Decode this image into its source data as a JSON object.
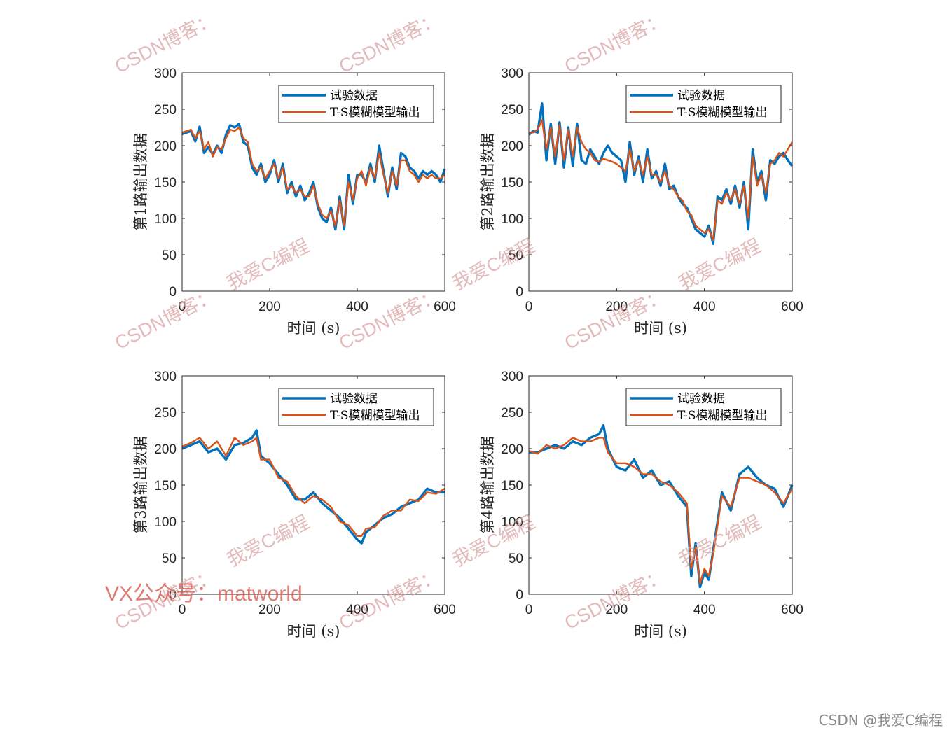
{
  "chart_data": [
    {
      "type": "line",
      "xlabel": "时间 (s)",
      "ylabel": "第1路输出数据",
      "xlim": [
        0,
        600
      ],
      "ylim": [
        0,
        300
      ],
      "xticks": [
        0,
        200,
        400,
        600
      ],
      "yticks": [
        0,
        50,
        100,
        150,
        200,
        250,
        300
      ],
      "grid": false,
      "legend_position": "top-right",
      "series": [
        {
          "name": "试验数据",
          "color": "#0072BD",
          "x": [
            0,
            20,
            30,
            40,
            50,
            60,
            70,
            80,
            90,
            100,
            110,
            120,
            130,
            140,
            150,
            160,
            170,
            180,
            190,
            200,
            210,
            220,
            230,
            240,
            250,
            260,
            270,
            280,
            290,
            300,
            310,
            320,
            330,
            340,
            350,
            360,
            370,
            380,
            390,
            400,
            410,
            420,
            430,
            440,
            450,
            460,
            470,
            480,
            490,
            500,
            510,
            520,
            530,
            540,
            550,
            560,
            570,
            580,
            590,
            600
          ],
          "y": [
            216,
            220,
            206,
            226,
            190,
            198,
            188,
            200,
            190,
            215,
            228,
            225,
            230,
            205,
            200,
            170,
            160,
            175,
            150,
            160,
            180,
            150,
            175,
            135,
            150,
            130,
            145,
            125,
            135,
            150,
            115,
            100,
            95,
            115,
            85,
            130,
            85,
            160,
            120,
            160,
            160,
            150,
            175,
            150,
            200,
            165,
            130,
            170,
            140,
            190,
            185,
            170,
            165,
            155,
            165,
            160,
            165,
            160,
            150,
            168
          ]
        },
        {
          "name": "T-S模糊模型输出",
          "color": "#D95319",
          "x": [
            0,
            20,
            30,
            40,
            50,
            60,
            70,
            80,
            90,
            100,
            110,
            120,
            130,
            140,
            150,
            160,
            170,
            180,
            190,
            200,
            210,
            220,
            230,
            240,
            250,
            260,
            270,
            280,
            290,
            300,
            310,
            320,
            330,
            340,
            350,
            360,
            370,
            380,
            390,
            400,
            410,
            420,
            430,
            440,
            450,
            460,
            470,
            480,
            490,
            500,
            510,
            520,
            530,
            540,
            550,
            560,
            570,
            580,
            590,
            600
          ],
          "y": [
            218,
            222,
            210,
            220,
            195,
            205,
            185,
            198,
            195,
            210,
            222,
            220,
            225,
            210,
            205,
            175,
            165,
            170,
            155,
            165,
            175,
            155,
            170,
            140,
            145,
            135,
            140,
            130,
            130,
            145,
            120,
            105,
            100,
            110,
            90,
            125,
            90,
            150,
            125,
            155,
            165,
            145,
            170,
            155,
            190,
            160,
            135,
            165,
            145,
            180,
            180,
            165,
            160,
            150,
            160,
            155,
            160,
            155,
            155,
            160
          ]
        }
      ]
    },
    {
      "type": "line",
      "xlabel": "时间 (s)",
      "ylabel": "第2路输出数据",
      "xlim": [
        0,
        600
      ],
      "ylim": [
        0,
        300
      ],
      "xticks": [
        0,
        200,
        400,
        600
      ],
      "yticks": [
        0,
        50,
        100,
        150,
        200,
        250,
        300
      ],
      "grid": false,
      "legend_position": "top-right",
      "series": [
        {
          "name": "试验数据",
          "color": "#0072BD",
          "x": [
            0,
            10,
            20,
            30,
            40,
            50,
            60,
            70,
            80,
            90,
            100,
            110,
            120,
            130,
            140,
            150,
            160,
            170,
            180,
            190,
            200,
            210,
            220,
            230,
            240,
            250,
            260,
            270,
            280,
            290,
            300,
            310,
            320,
            330,
            340,
            350,
            360,
            370,
            380,
            390,
            400,
            410,
            420,
            430,
            440,
            450,
            460,
            470,
            480,
            490,
            500,
            510,
            520,
            530,
            540,
            550,
            560,
            570,
            580,
            590,
            600
          ],
          "y": [
            215,
            220,
            218,
            258,
            180,
            230,
            175,
            232,
            170,
            225,
            172,
            230,
            180,
            175,
            195,
            185,
            175,
            190,
            200,
            190,
            185,
            180,
            150,
            205,
            160,
            185,
            150,
            195,
            155,
            165,
            145,
            175,
            140,
            145,
            130,
            120,
            115,
            100,
            85,
            80,
            75,
            90,
            65,
            130,
            125,
            140,
            120,
            145,
            115,
            150,
            85,
            195,
            150,
            165,
            125,
            180,
            175,
            185,
            190,
            180,
            172
          ]
        },
        {
          "name": "T-S模糊模型输出",
          "color": "#D95319",
          "x": [
            0,
            10,
            20,
            30,
            40,
            50,
            60,
            70,
            80,
            90,
            100,
            110,
            120,
            130,
            140,
            150,
            160,
            170,
            180,
            190,
            200,
            210,
            220,
            230,
            240,
            250,
            260,
            270,
            280,
            290,
            300,
            310,
            320,
            330,
            340,
            350,
            360,
            370,
            380,
            390,
            400,
            410,
            420,
            430,
            440,
            450,
            460,
            470,
            480,
            490,
            500,
            510,
            520,
            530,
            540,
            550,
            560,
            570,
            580,
            590,
            600
          ],
          "y": [
            218,
            218,
            222,
            235,
            195,
            225,
            185,
            228,
            180,
            222,
            185,
            225,
            205,
            195,
            190,
            180,
            178,
            182,
            180,
            178,
            175,
            170,
            165,
            195,
            165,
            180,
            160,
            185,
            160,
            160,
            150,
            165,
            145,
            140,
            130,
            125,
            110,
            105,
            90,
            85,
            80,
            85,
            70,
            125,
            120,
            135,
            125,
            140,
            120,
            145,
            100,
            185,
            145,
            160,
            135,
            175,
            180,
            190,
            185,
            195,
            205
          ]
        }
      ]
    },
    {
      "type": "line",
      "xlabel": "时间 (s)",
      "ylabel": "第3路输出数据",
      "xlim": [
        0,
        600
      ],
      "ylim": [
        0,
        300
      ],
      "xticks": [
        0,
        200,
        400,
        600
      ],
      "yticks": [
        0,
        50,
        100,
        150,
        200,
        250,
        300
      ],
      "grid": false,
      "legend_position": "top-right",
      "series": [
        {
          "name": "试验数据",
          "color": "#0072BD",
          "x": [
            0,
            20,
            40,
            60,
            80,
            100,
            120,
            140,
            160,
            170,
            180,
            200,
            220,
            240,
            260,
            280,
            300,
            320,
            340,
            360,
            380,
            400,
            410,
            420,
            440,
            460,
            480,
            500,
            520,
            540,
            560,
            580,
            600
          ],
          "y": [
            200,
            205,
            210,
            195,
            200,
            185,
            205,
            208,
            215,
            225,
            190,
            180,
            165,
            150,
            130,
            130,
            140,
            125,
            115,
            105,
            90,
            75,
            70,
            85,
            95,
            105,
            110,
            120,
            125,
            130,
            145,
            140,
            140
          ]
        },
        {
          "name": "T-S模糊模型输出",
          "color": "#D95319",
          "x": [
            0,
            20,
            40,
            60,
            80,
            100,
            120,
            140,
            160,
            170,
            180,
            200,
            220,
            240,
            260,
            280,
            300,
            320,
            340,
            360,
            380,
            400,
            410,
            420,
            440,
            460,
            480,
            500,
            520,
            540,
            560,
            580,
            600
          ],
          "y": [
            203,
            208,
            215,
            200,
            210,
            190,
            215,
            205,
            210,
            215,
            185,
            185,
            160,
            155,
            135,
            125,
            135,
            130,
            120,
            100,
            95,
            80,
            80,
            90,
            92,
            108,
            115,
            115,
            130,
            128,
            140,
            138,
            145
          ]
        }
      ]
    },
    {
      "type": "line",
      "xlabel": "时间 (s)",
      "ylabel": "第4路输出数据",
      "xlim": [
        0,
        600
      ],
      "ylim": [
        0,
        300
      ],
      "xticks": [
        0,
        200,
        400,
        600
      ],
      "yticks": [
        0,
        50,
        100,
        150,
        200,
        250,
        300
      ],
      "grid": false,
      "legend_position": "top-right",
      "series": [
        {
          "name": "试验数据",
          "color": "#0072BD",
          "x": [
            0,
            20,
            40,
            60,
            80,
            100,
            120,
            140,
            160,
            170,
            180,
            200,
            220,
            240,
            260,
            280,
            300,
            320,
            340,
            360,
            370,
            380,
            390,
            400,
            410,
            420,
            440,
            460,
            480,
            500,
            520,
            540,
            560,
            580,
            600
          ],
          "y": [
            195,
            195,
            200,
            205,
            200,
            210,
            205,
            215,
            220,
            232,
            200,
            175,
            170,
            185,
            160,
            170,
            150,
            155,
            135,
            120,
            25,
            70,
            10,
            30,
            20,
            60,
            140,
            115,
            165,
            175,
            160,
            150,
            145,
            120,
            150
          ]
        },
        {
          "name": "T-S模糊模型输出",
          "color": "#D95319",
          "x": [
            0,
            20,
            40,
            60,
            80,
            100,
            120,
            140,
            160,
            170,
            180,
            200,
            220,
            240,
            260,
            280,
            300,
            320,
            340,
            360,
            370,
            380,
            390,
            400,
            410,
            420,
            440,
            460,
            480,
            500,
            520,
            540,
            560,
            580,
            600
          ],
          "y": [
            197,
            193,
            205,
            200,
            205,
            215,
            210,
            210,
            215,
            215,
            195,
            180,
            180,
            175,
            165,
            165,
            155,
            150,
            140,
            125,
            35,
            65,
            15,
            35,
            25,
            55,
            135,
            120,
            160,
            160,
            155,
            150,
            140,
            125,
            145
          ]
        }
      ]
    }
  ],
  "watermarks": {
    "csdn": "CSDN博客：",
    "love": "我爱C编程",
    "vx": "VX公众号：matworld"
  },
  "footer": {
    "credit": "CSDN @我爱C编程"
  }
}
